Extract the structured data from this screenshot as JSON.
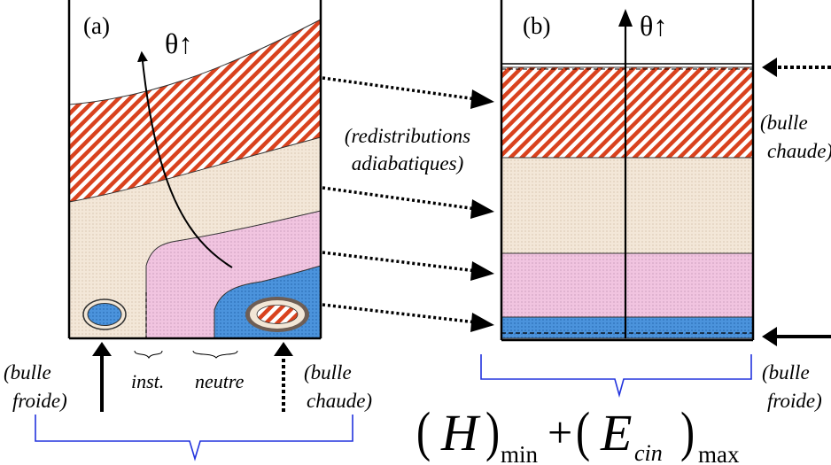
{
  "panel_a": {
    "label": "(a)",
    "theta": "θ↑",
    "cold_bubble": [
      "(bulle",
      "froide)"
    ],
    "hot_bubble": [
      "(bulle",
      "chaude)"
    ],
    "bracket_inst": "inst.",
    "bracket_neutre": "neutre"
  },
  "middle": {
    "annotation": [
      "(redistributions",
      "adiabatiques)"
    ]
  },
  "panel_b": {
    "label": "(b)",
    "theta": "θ↑",
    "hot_bubble": [
      "(bulle",
      "chaude)"
    ],
    "cold_bubble": [
      "(bulle",
      "froide)"
    ]
  },
  "formula": {
    "H": "H",
    "min": "min",
    "plus": "+",
    "E": "E",
    "cin": "cin",
    "max": "max"
  },
  "colors": {
    "hatch_red": "#d9421e",
    "beige": "#f2e6d6",
    "pink": "#f0c6e0",
    "blue": "#4a90d8",
    "brace_blue": "#2233dd"
  }
}
